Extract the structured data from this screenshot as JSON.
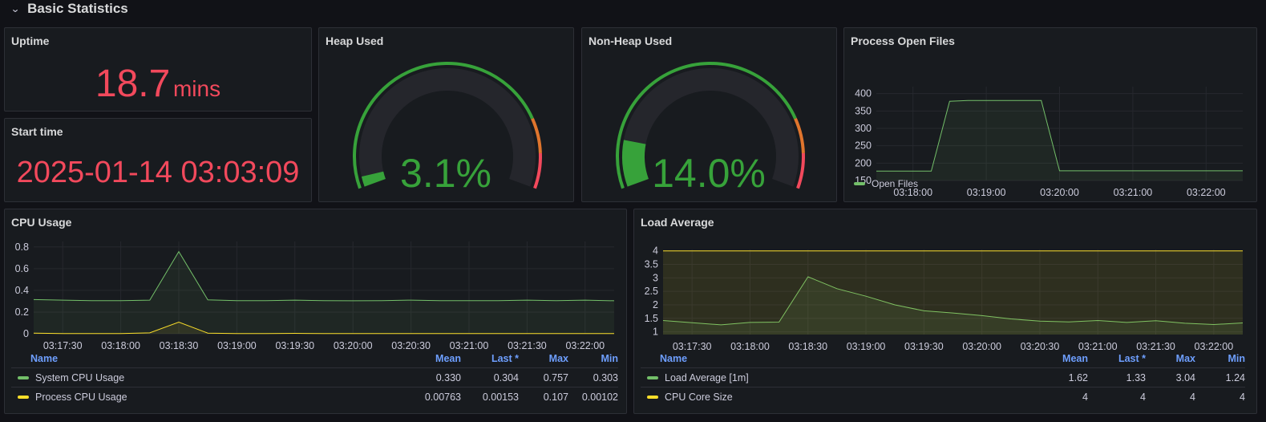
{
  "row": {
    "chevron": "chevron-down-icon",
    "title": "Basic Statistics"
  },
  "colors": {
    "red": "#f2495c",
    "green": "#37a23a",
    "yellow": "#fade2a",
    "orange": "#e0752d",
    "line_green": "#73bf69"
  },
  "uptime": {
    "title": "Uptime",
    "value": "18.7",
    "unit": "mins"
  },
  "start_time": {
    "title": "Start time",
    "value": "2025-01-14 03:03:09"
  },
  "heap": {
    "title": "Heap Used",
    "value_text": "3.1%",
    "percent": 3.1
  },
  "nonheap": {
    "title": "Non-Heap Used",
    "value_text": "14.0%",
    "percent": 14.0
  },
  "open_files": {
    "title": "Process Open Files",
    "legend": "Open Files"
  },
  "cpu": {
    "title": "CPU Usage",
    "legend_headers": {
      "name": "Name",
      "mean": "Mean",
      "last": "Last *",
      "max": "Max",
      "min": "Min"
    },
    "rows": [
      {
        "name": "System CPU Usage",
        "mean": "0.330",
        "last": "0.304",
        "max": "0.757",
        "min": "0.303",
        "color": "#73bf69"
      },
      {
        "name": "Process CPU Usage",
        "mean": "0.00763",
        "last": "0.00153",
        "max": "0.107",
        "min": "0.00102",
        "color": "#fade2a"
      }
    ]
  },
  "load": {
    "title": "Load Average",
    "legend_headers": {
      "name": "Name",
      "mean": "Mean",
      "last": "Last *",
      "max": "Max",
      "min": "Min"
    },
    "rows": [
      {
        "name": "Load Average [1m]",
        "mean": "1.62",
        "last": "1.33",
        "max": "3.04",
        "min": "1.24",
        "color": "#73bf69"
      },
      {
        "name": "CPU Core Size",
        "mean": "4",
        "last": "4",
        "max": "4",
        "min": "4",
        "color": "#fade2a"
      }
    ]
  },
  "chart_data": [
    {
      "type": "line",
      "name": "Process Open Files",
      "x_ticks": [
        "03:18:00",
        "03:19:00",
        "03:20:00",
        "03:21:00",
        "03:22:00"
      ],
      "y_ticks": [
        "150",
        "200",
        "250",
        "300",
        "350",
        "400"
      ],
      "ylim": [
        150,
        420
      ],
      "series": [
        {
          "name": "Open Files",
          "color": "#73bf69",
          "x": [
            "03:17:30",
            "03:18:15",
            "03:18:30",
            "03:18:45",
            "03:19:00",
            "03:19:30",
            "03:19:45",
            "03:20:00",
            "03:21:00",
            "03:22:00",
            "03:22:30"
          ],
          "values": [
            177,
            177,
            378,
            380,
            380,
            380,
            380,
            178,
            178,
            178,
            178
          ]
        }
      ]
    },
    {
      "type": "line",
      "name": "CPU Usage",
      "x_ticks": [
        "03:17:30",
        "03:18:00",
        "03:18:30",
        "03:19:00",
        "03:19:30",
        "03:20:00",
        "03:20:30",
        "03:21:00",
        "03:21:30",
        "03:22:00"
      ],
      "y_ticks": [
        "0",
        "0.2",
        "0.4",
        "0.6",
        "0.8"
      ],
      "ylim": [
        0,
        0.85
      ],
      "series": [
        {
          "name": "System CPU Usage",
          "color": "#73bf69",
          "x": [
            "03:17:15",
            "03:17:30",
            "03:17:45",
            "03:18:00",
            "03:18:15",
            "03:18:30",
            "03:18:45",
            "03:19:00",
            "03:19:15",
            "03:19:30",
            "03:19:45",
            "03:20:00",
            "03:20:15",
            "03:20:30",
            "03:20:45",
            "03:21:00",
            "03:21:15",
            "03:21:30",
            "03:21:45",
            "03:22:00",
            "03:22:15"
          ],
          "values": [
            0.315,
            0.31,
            0.305,
            0.305,
            0.31,
            0.757,
            0.313,
            0.305,
            0.305,
            0.31,
            0.305,
            0.304,
            0.305,
            0.31,
            0.305,
            0.305,
            0.305,
            0.31,
            0.305,
            0.31,
            0.304
          ]
        },
        {
          "name": "Process CPU Usage",
          "color": "#fade2a",
          "x": [
            "03:17:15",
            "03:17:30",
            "03:17:45",
            "03:18:00",
            "03:18:15",
            "03:18:30",
            "03:18:45",
            "03:19:00",
            "03:19:15",
            "03:19:30",
            "03:19:45",
            "03:20:00",
            "03:20:15",
            "03:20:30",
            "03:20:45",
            "03:21:00",
            "03:21:15",
            "03:21:30",
            "03:21:45",
            "03:22:00",
            "03:22:15"
          ],
          "values": [
            0.005,
            0.002,
            0.002,
            0.002,
            0.008,
            0.107,
            0.006,
            0.002,
            0.002,
            0.004,
            0.002,
            0.002,
            0.002,
            0.002,
            0.002,
            0.002,
            0.002,
            0.002,
            0.002,
            0.002,
            0.0015
          ]
        }
      ]
    },
    {
      "type": "area",
      "name": "Load Average",
      "x_ticks": [
        "03:17:30",
        "03:18:00",
        "03:18:30",
        "03:19:00",
        "03:19:30",
        "03:20:00",
        "03:20:30",
        "03:21:00",
        "03:21:30",
        "03:22:00"
      ],
      "y_ticks": [
        "1",
        "1.5",
        "2",
        "2.5",
        "3",
        "3.5",
        "4"
      ],
      "ylim": [
        0.9,
        4.05
      ],
      "series": [
        {
          "name": "Load Average [1m]",
          "color": "#73bf69",
          "x": [
            "03:17:15",
            "03:17:45",
            "03:18:00",
            "03:18:15",
            "03:18:30",
            "03:18:45",
            "03:19:00",
            "03:19:15",
            "03:19:30",
            "03:19:45",
            "03:20:00",
            "03:20:15",
            "03:20:30",
            "03:20:45",
            "03:21:00",
            "03:21:15",
            "03:21:30",
            "03:21:45",
            "03:22:00",
            "03:22:15"
          ],
          "values": [
            1.42,
            1.26,
            1.35,
            1.36,
            3.04,
            2.6,
            2.32,
            2.0,
            1.78,
            1.7,
            1.6,
            1.48,
            1.4,
            1.37,
            1.42,
            1.35,
            1.41,
            1.32,
            1.27,
            1.33
          ]
        },
        {
          "name": "CPU Core Size",
          "color": "#fade2a",
          "x": [
            "03:17:15",
            "03:22:15"
          ],
          "values": [
            4,
            4
          ]
        }
      ]
    }
  ]
}
